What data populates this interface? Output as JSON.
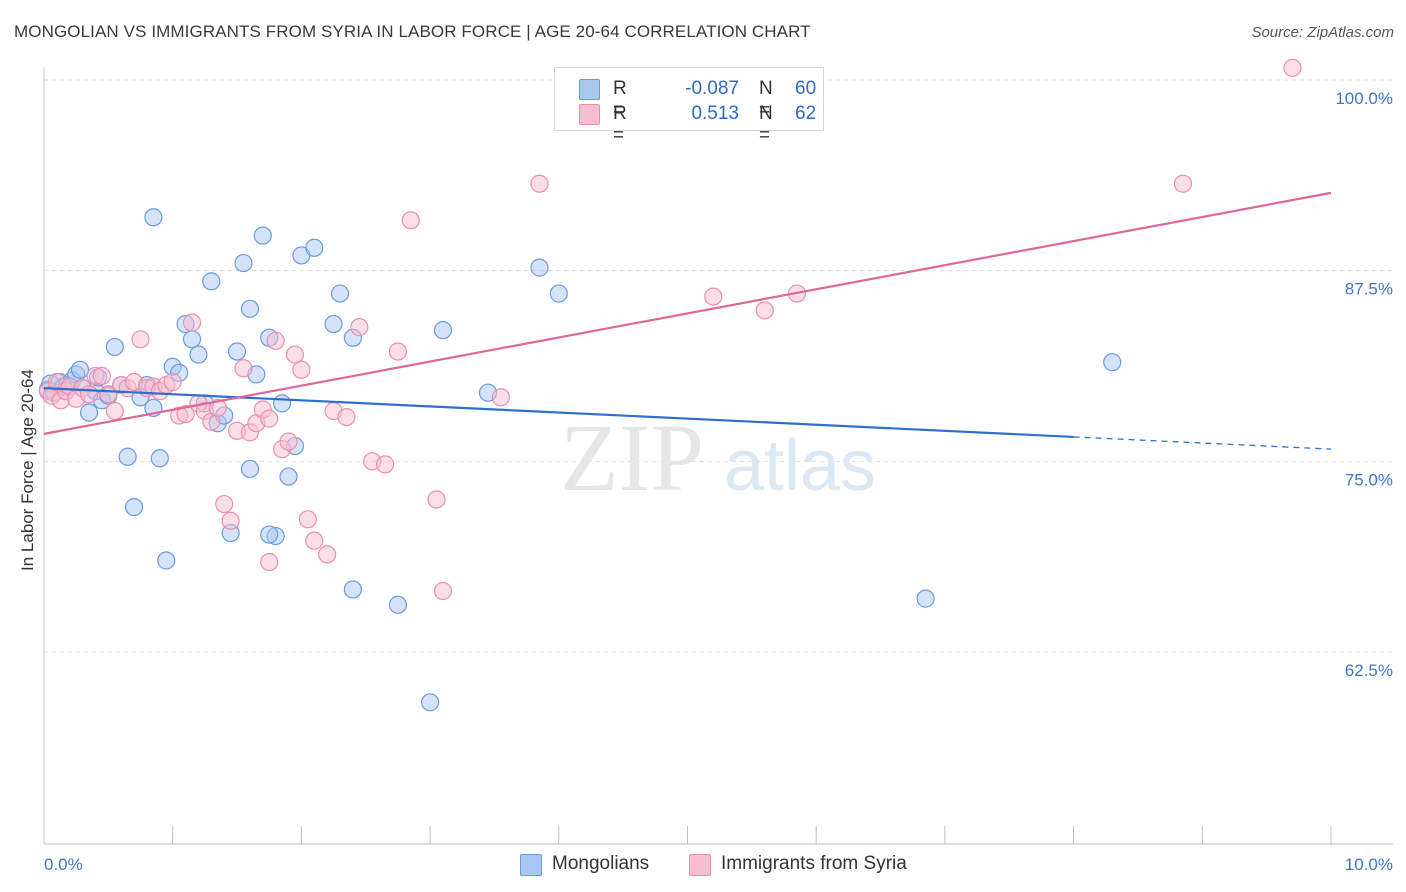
{
  "title": "MONGOLIAN VS IMMIGRANTS FROM SYRIA IN LABOR FORCE | AGE 20-64 CORRELATION CHART",
  "source": "Source: ZipAtlas.com",
  "watermark": {
    "zip": "ZIP",
    "atlas": "atlas"
  },
  "colors": {
    "blue_fill": "#a9c8f0",
    "blue_stroke": "#6a9be0",
    "blue_line": "#2f6fcb",
    "pink_fill": "#f7bdd0",
    "pink_stroke": "#ec8fae",
    "pink_line": "#e0679a",
    "tick_text": "#3f77c8",
    "grid": "#dcdcdc"
  },
  "stats": [
    {
      "label": "R =",
      "r": "-0.087",
      "n_label": "N =",
      "n": "60"
    },
    {
      "label": "R =",
      "r": "0.513",
      "n_label": "N =",
      "n": "62"
    }
  ],
  "legend": [
    "Mongolians",
    "Immigrants from Syria"
  ],
  "chart_data": {
    "type": "scatter",
    "title": "MONGOLIAN VS IMMIGRANTS FROM SYRIA IN LABOR FORCE | AGE 20-64 CORRELATION CHART",
    "xlabel": "",
    "ylabel": "In Labor Force | Age 20-64",
    "xlim": [
      0.0,
      10.0
    ],
    "ylim": [
      52.0,
      101.5
    ],
    "x_tick_labels": [
      {
        "value": 0.0,
        "label": "0.0%"
      },
      {
        "value": 10.0,
        "label": "10.0%"
      }
    ],
    "y_tick_labels": [
      {
        "value": 100.0,
        "label": "100.0%"
      },
      {
        "value": 87.5,
        "label": "87.5%"
      },
      {
        "value": 75.0,
        "label": "75.0%"
      },
      {
        "value": 62.5,
        "label": "62.5%"
      }
    ],
    "x_minor_ticks": [
      1.0,
      2.0,
      3.0,
      4.0,
      5.0,
      6.0,
      7.0,
      8.0,
      9.0
    ],
    "series": [
      {
        "name": "Mongolians",
        "regression": {
          "x": [
            0.0,
            8.0
          ],
          "y": [
            79.8,
            76.6
          ],
          "dashed_x": [
            8.0,
            10.0
          ],
          "dashed_y": [
            76.6,
            75.8
          ]
        },
        "points": [
          [
            0.03,
            79.7
          ],
          [
            0.05,
            80.1
          ],
          [
            0.08,
            79.5
          ],
          [
            0.12,
            80.2
          ],
          [
            0.15,
            79.9
          ],
          [
            0.18,
            80.0
          ],
          [
            0.22,
            80.3
          ],
          [
            0.25,
            80.7
          ],
          [
            0.28,
            81.0
          ],
          [
            0.3,
            79.8
          ],
          [
            0.35,
            78.2
          ],
          [
            0.4,
            79.6
          ],
          [
            0.42,
            80.5
          ],
          [
            0.45,
            79.0
          ],
          [
            0.5,
            79.3
          ],
          [
            0.55,
            82.5
          ],
          [
            0.6,
            80.0
          ],
          [
            0.65,
            75.3
          ],
          [
            0.7,
            72.0
          ],
          [
            0.75,
            79.2
          ],
          [
            0.8,
            80.0
          ],
          [
            0.85,
            78.5
          ],
          [
            0.9,
            75.2
          ],
          [
            0.95,
            68.5
          ],
          [
            1.0,
            81.2
          ],
          [
            1.05,
            80.8
          ],
          [
            1.1,
            84.0
          ],
          [
            1.15,
            83.0
          ],
          [
            1.2,
            82.0
          ],
          [
            1.25,
            78.8
          ],
          [
            1.3,
            86.8
          ],
          [
            1.35,
            77.5
          ],
          [
            1.4,
            78.0
          ],
          [
            1.45,
            70.3
          ],
          [
            1.5,
            82.2
          ],
          [
            1.55,
            88.0
          ],
          [
            1.6,
            85.0
          ],
          [
            1.65,
            80.7
          ],
          [
            1.7,
            89.8
          ],
          [
            1.75,
            83.1
          ],
          [
            1.8,
            70.1
          ],
          [
            1.85,
            78.8
          ],
          [
            1.9,
            74.0
          ],
          [
            1.95,
            76.0
          ],
          [
            2.0,
            88.5
          ],
          [
            2.1,
            89.0
          ],
          [
            2.3,
            86.0
          ],
          [
            2.25,
            84.0
          ],
          [
            2.4,
            83.1
          ],
          [
            0.85,
            91.0
          ],
          [
            1.6,
            74.5
          ],
          [
            1.75,
            70.2
          ],
          [
            2.4,
            66.6
          ],
          [
            2.75,
            65.6
          ],
          [
            3.0,
            59.2
          ],
          [
            3.1,
            83.6
          ],
          [
            3.45,
            79.5
          ],
          [
            3.85,
            87.7
          ],
          [
            4.0,
            86.0
          ],
          [
            6.85,
            66.0
          ],
          [
            8.3,
            81.5
          ]
        ]
      },
      {
        "name": "Immigrants from Syria",
        "regression": {
          "x": [
            0.0,
            10.0
          ],
          "y": [
            76.8,
            92.6
          ]
        },
        "points": [
          [
            0.03,
            79.6
          ],
          [
            0.06,
            79.3
          ],
          [
            0.1,
            80.2
          ],
          [
            0.13,
            79.0
          ],
          [
            0.17,
            79.6
          ],
          [
            0.2,
            79.9
          ],
          [
            0.25,
            79.1
          ],
          [
            0.3,
            79.8
          ],
          [
            0.35,
            79.4
          ],
          [
            0.4,
            80.6
          ],
          [
            0.45,
            80.6
          ],
          [
            0.5,
            79.4
          ],
          [
            0.55,
            78.3
          ],
          [
            0.6,
            80.0
          ],
          [
            0.65,
            79.8
          ],
          [
            0.7,
            80.2
          ],
          [
            0.75,
            83.0
          ],
          [
            0.8,
            79.8
          ],
          [
            0.85,
            79.9
          ],
          [
            0.9,
            79.6
          ],
          [
            0.95,
            80.0
          ],
          [
            1.0,
            80.2
          ],
          [
            1.05,
            78.0
          ],
          [
            1.1,
            78.1
          ],
          [
            1.15,
            84.1
          ],
          [
            1.2,
            78.8
          ],
          [
            1.25,
            78.3
          ],
          [
            1.3,
            77.6
          ],
          [
            1.35,
            78.5
          ],
          [
            1.4,
            72.2
          ],
          [
            1.45,
            71.1
          ],
          [
            1.5,
            77.0
          ],
          [
            1.55,
            81.1
          ],
          [
            1.6,
            76.9
          ],
          [
            1.65,
            77.5
          ],
          [
            1.7,
            78.4
          ],
          [
            1.75,
            77.8
          ],
          [
            1.8,
            82.9
          ],
          [
            1.85,
            75.8
          ],
          [
            1.9,
            76.3
          ],
          [
            1.95,
            82.0
          ],
          [
            2.0,
            81.0
          ],
          [
            2.05,
            71.2
          ],
          [
            2.1,
            69.8
          ],
          [
            2.2,
            68.9
          ],
          [
            2.25,
            78.3
          ],
          [
            2.35,
            77.9
          ],
          [
            2.45,
            83.8
          ],
          [
            2.55,
            75.0
          ],
          [
            2.65,
            74.8
          ],
          [
            2.75,
            82.2
          ],
          [
            2.85,
            90.8
          ],
          [
            3.05,
            72.5
          ],
          [
            3.1,
            66.5
          ],
          [
            3.55,
            79.2
          ],
          [
            3.85,
            93.2
          ],
          [
            5.2,
            85.8
          ],
          [
            5.6,
            84.9
          ],
          [
            5.85,
            86.0
          ],
          [
            8.85,
            93.2
          ],
          [
            9.7,
            100.8
          ],
          [
            1.75,
            68.4
          ]
        ]
      }
    ]
  }
}
